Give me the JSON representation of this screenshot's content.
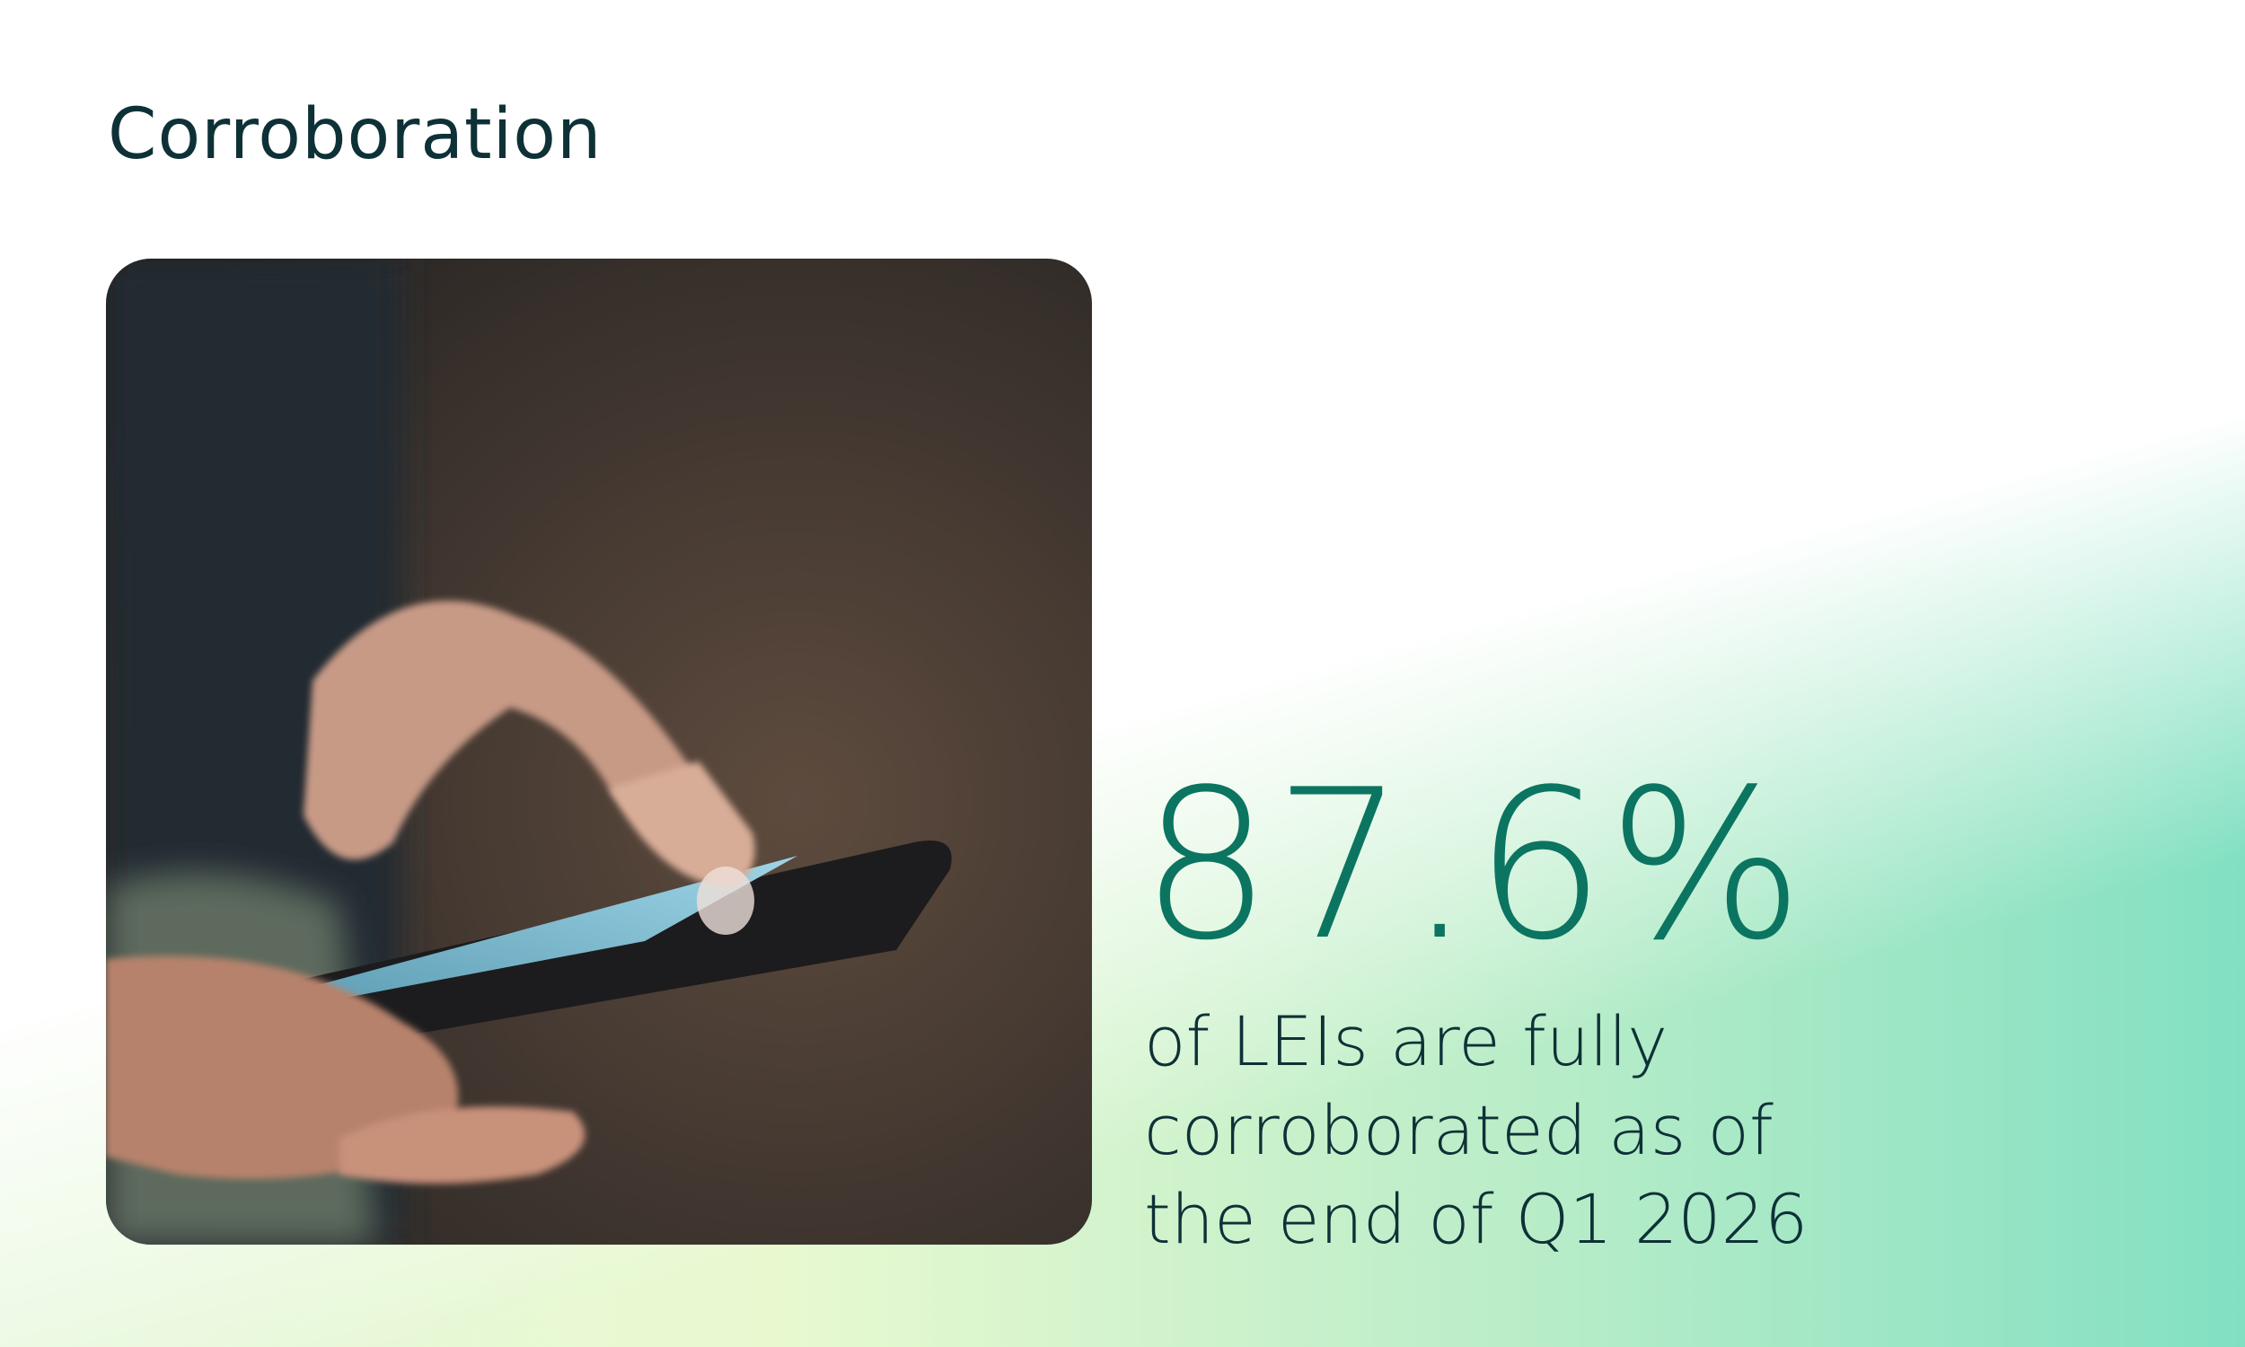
{
  "title": "Corroboration",
  "stat": {
    "value": "87.6%",
    "description": [
      "of LEIs are fully",
      "corroborated as of",
      "the end of Q1 2026"
    ]
  }
}
